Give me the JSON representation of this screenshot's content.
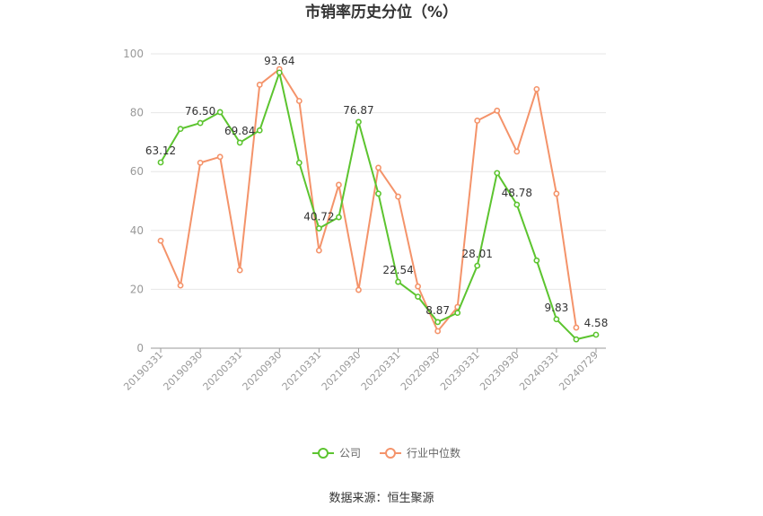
{
  "chart_data": {
    "type": "line",
    "title": "市销率历史分位（%）",
    "source": "数据来源：恒生聚源",
    "ylim": [
      0,
      100
    ],
    "yticks": [
      "0",
      "20",
      "40",
      "60",
      "80",
      "100"
    ],
    "x": [
      "20190331",
      "20190630",
      "20190930",
      "20191231",
      "20200331",
      "20200630",
      "20200930",
      "20201231",
      "20210331",
      "20210630",
      "20210930",
      "20211231",
      "20220331",
      "20220630",
      "20220930",
      "20221231",
      "20230331",
      "20230630",
      "20230930",
      "20231231",
      "20240331",
      "20240630",
      "20240729"
    ],
    "xtick_labels": [
      "20190331",
      "20190930",
      "20200331",
      "20200930",
      "20210331",
      "20210930",
      "20220331",
      "20220930",
      "20230331",
      "20230930",
      "20240331",
      "20240729"
    ],
    "legend_position": "bottom",
    "series": [
      {
        "name": "公司",
        "color": "#5cc42f",
        "values": [
          63.12,
          74.5,
          76.5,
          80.2,
          69.84,
          74.0,
          93.64,
          63.0,
          40.72,
          44.5,
          76.87,
          52.5,
          22.54,
          17.5,
          8.87,
          12.0,
          28.01,
          59.5,
          48.78,
          29.8,
          9.83,
          3.0,
          4.58
        ],
        "labels": [
          "63.12",
          "",
          "76.50",
          "",
          "69.84",
          "",
          "93.64",
          "",
          "40.72",
          "",
          "76.87",
          "",
          "22.54",
          "",
          "8.87",
          "",
          "28.01",
          "",
          "48.78",
          "",
          "9.83",
          "",
          "4.58"
        ]
      },
      {
        "name": "行业中位数",
        "color": "#f4936a",
        "values": [
          36.5,
          21.3,
          63.0,
          65.0,
          26.5,
          89.5,
          94.8,
          84.0,
          33.2,
          55.5,
          19.8,
          61.3,
          51.5,
          21.0,
          5.8,
          14.0,
          77.3,
          80.7,
          66.8,
          88.0,
          52.5,
          7.0,
          null
        ]
      }
    ]
  }
}
